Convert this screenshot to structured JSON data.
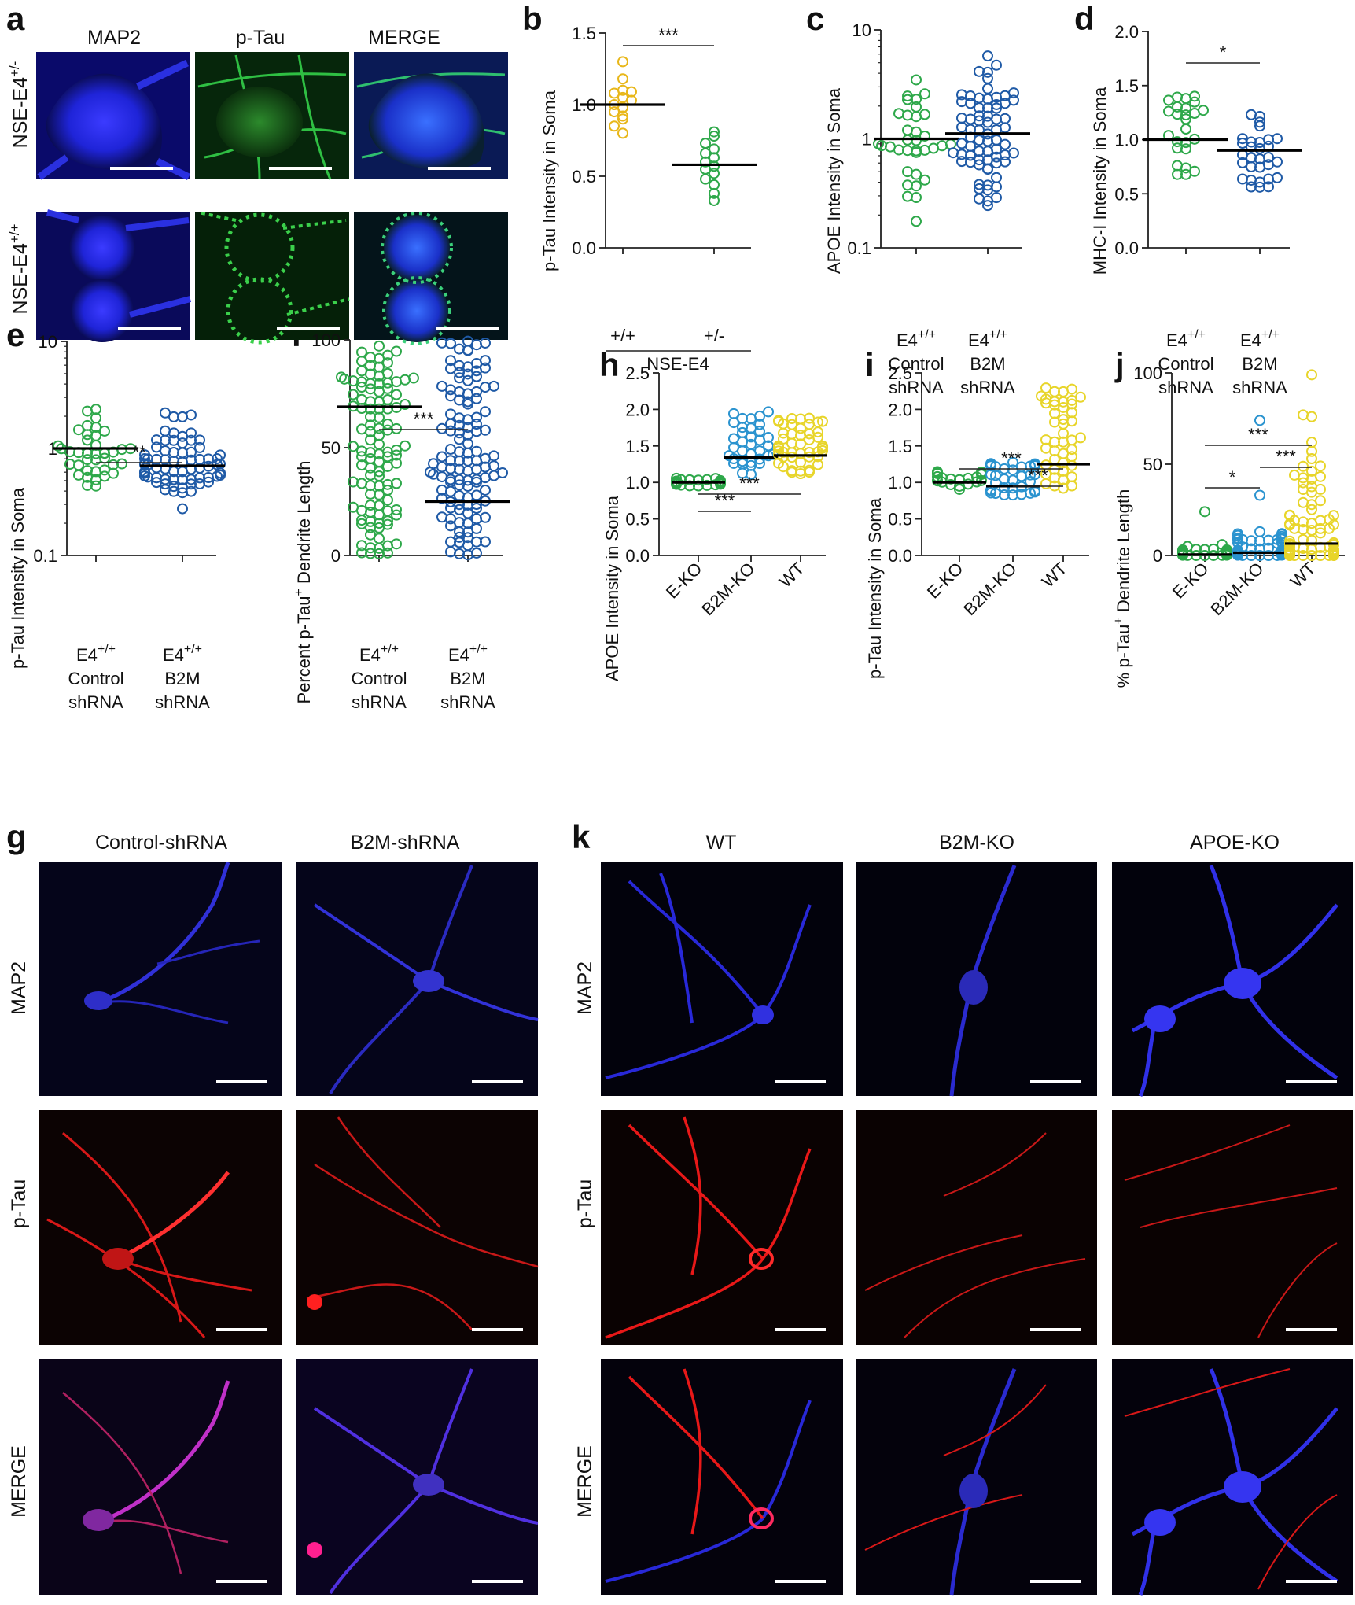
{
  "panel_letters": {
    "a": "a",
    "b": "b",
    "c": "c",
    "d": "d",
    "e": "e",
    "f": "f",
    "g": "g",
    "h": "h",
    "i": "i",
    "j": "j",
    "k": "k"
  },
  "panel_a": {
    "columns": [
      "MAP2",
      "p-Tau",
      "MERGE"
    ],
    "rows": [
      {
        "base": "NSE-E4",
        "sup": "+/-"
      },
      {
        "base": "NSE-E4",
        "sup": "+/+"
      }
    ],
    "colors": {
      "map2": "#1a22e6",
      "ptau": "#1fa02e"
    }
  },
  "panel_g": {
    "columns": [
      "Control-shRNA",
      "B2M-shRNA"
    ],
    "rows": [
      "MAP2",
      "p-Tau",
      "MERGE"
    ],
    "colors": {
      "map2": "#2a2adf",
      "ptau": "#e01515",
      "merge": "#b020c0"
    }
  },
  "panel_k": {
    "columns": [
      "WT",
      "B2M-KO",
      "APOE-KO"
    ],
    "rows": [
      "MAP2",
      "p-Tau",
      "MERGE"
    ]
  },
  "group_labels": {
    "plusplus": "+/+",
    "plusminus": "+/-",
    "nse_e4": "NSE-E4",
    "e4": "E4",
    "sup": "+/+",
    "control": "Control",
    "b2m": "B2M",
    "shrna": "shRNA",
    "pct_ptau_base": "Percent p-Tau",
    "pct_ptau_tail": " Dendrite Length",
    "pct2_base": "% p-Tau",
    "pct2_tail": " Dendrite Length",
    "plus": "+"
  },
  "chart_data": [
    {
      "panel": "b",
      "type": "scatter",
      "ylabel": "p-Tau Intensity in Soma",
      "ylim": [
        0.0,
        1.5
      ],
      "yticks": [
        "0.0",
        "0.5",
        "1.0",
        "1.5"
      ],
      "categories": [
        "+/+",
        "+/-"
      ],
      "group_label": "NSE-E4",
      "series": [
        {
          "color": "#e8b71a",
          "mean": 1.0,
          "values": [
            1.3,
            1.18,
            1.1,
            1.09,
            1.08,
            1.05,
            1.03,
            1.0,
            0.98,
            0.95,
            0.92,
            0.9,
            0.85,
            0.8
          ]
        },
        {
          "color": "#2ea84a",
          "mean": 0.58,
          "values": [
            0.81,
            0.78,
            0.73,
            0.69,
            0.66,
            0.63,
            0.6,
            0.57,
            0.55,
            0.52,
            0.48,
            0.44,
            0.38,
            0.33
          ]
        }
      ],
      "significance": [
        {
          "from": 0,
          "to": 1,
          "label": "***"
        }
      ]
    },
    {
      "panel": "c",
      "type": "scatter",
      "scale": "log",
      "ylabel": "APOE Intensity in Soma",
      "ylim": [
        0.1,
        10
      ],
      "yticks": [
        "0.1",
        "1",
        "10"
      ],
      "series": [
        {
          "color": "#2ea84a",
          "mean": 1.0,
          "n": 34,
          "spread": 0.9
        },
        {
          "color": "#1f5aa6",
          "mean": 1.12,
          "n": 70,
          "spread": 1.0
        }
      ]
    },
    {
      "panel": "d",
      "type": "scatter",
      "ylabel": "MHC-I Intensity in Soma",
      "ylim": [
        0.0,
        2.0
      ],
      "yticks": [
        "0.0",
        "0.5",
        "1.0",
        "1.5",
        "2.0"
      ],
      "series": [
        {
          "color": "#2ea84a",
          "mean": 1.0,
          "n": 25,
          "lo": 0.65,
          "hi": 1.45
        },
        {
          "color": "#1f5aa6",
          "mean": 0.9,
          "n": 30,
          "lo": 0.52,
          "hi": 1.25
        }
      ],
      "significance": [
        {
          "from": 0,
          "to": 1,
          "label": "*"
        }
      ]
    },
    {
      "panel": "e",
      "type": "scatter",
      "scale": "log",
      "ylabel": "p-Tau Intensity in Soma",
      "ylim": [
        0.1,
        10
      ],
      "yticks": [
        "0.1",
        "1",
        "10"
      ],
      "series": [
        {
          "color": "#2ea84a",
          "mean": 1.0,
          "n": 38,
          "spread": 0.6
        },
        {
          "color": "#1f5aa6",
          "mean": 0.69,
          "n": 70,
          "spread": 0.65
        }
      ],
      "significance": [
        {
          "from": 0,
          "to": 1,
          "label": "**"
        }
      ]
    },
    {
      "panel": "f",
      "type": "scatter",
      "ylim": [
        0,
        100
      ],
      "yticks": [
        "0",
        "50",
        "100"
      ],
      "series": [
        {
          "color": "#2ea84a",
          "mean": 69,
          "n": 110,
          "lo": 0,
          "hi": 100
        },
        {
          "color": "#1f5aa6",
          "mean": 25,
          "n": 120,
          "lo": 0,
          "hi": 100
        }
      ],
      "significance": [
        {
          "from": 0,
          "to": 1,
          "label": "***"
        }
      ]
    },
    {
      "panel": "h",
      "type": "scatter",
      "ylabel": "APOE Intensity in Soma",
      "ylim": [
        0.0,
        2.5
      ],
      "yticks": [
        "0.0",
        "0.5",
        "1.0",
        "1.5",
        "2.0",
        "2.5"
      ],
      "categories": [
        "E-KO",
        "B2M-KO",
        "WT"
      ],
      "series": [
        {
          "color": "#2ea84a",
          "mean": 1.0,
          "n": 25,
          "lo": 0.95,
          "hi": 1.06
        },
        {
          "color": "#2a93cf",
          "mean": 1.34,
          "n": 35,
          "lo": 1.08,
          "hi": 2.0
        },
        {
          "color": "#e8d52a",
          "mean": 1.37,
          "n": 50,
          "lo": 1.12,
          "hi": 1.88
        }
      ],
      "significance": [
        {
          "from": 0,
          "to": 1,
          "label": "***"
        },
        {
          "from": 0,
          "to": 2,
          "label": "***"
        }
      ]
    },
    {
      "panel": "i",
      "type": "scatter",
      "ylabel": "p-Tau Intensity in Soma",
      "ylim": [
        0.0,
        2.5
      ],
      "yticks": [
        "0.0",
        "0.5",
        "1.0",
        "1.5",
        "2.0",
        "2.5"
      ],
      "categories": [
        "E-KO",
        "B2M-KO",
        "WT"
      ],
      "series": [
        {
          "color": "#2ea84a",
          "mean": 1.0,
          "n": 25,
          "lo": 0.9,
          "hi": 1.15
        },
        {
          "color": "#2a93cf",
          "mean": 0.95,
          "n": 35,
          "lo": 0.82,
          "hi": 1.28
        },
        {
          "color": "#e8d52a",
          "mean": 1.25,
          "n": 45,
          "lo": 0.92,
          "hi": 2.32
        }
      ],
      "significance": [
        {
          "from": 0,
          "to": 2,
          "label": "***"
        },
        {
          "from": 1,
          "to": 2,
          "label": "***"
        }
      ]
    },
    {
      "panel": "j",
      "type": "scatter",
      "ylim": [
        0,
        100
      ],
      "yticks": [
        "0",
        "50",
        "100"
      ],
      "categories": [
        "E-KO",
        "B2M-KO",
        "WT"
      ],
      "series": [
        {
          "color": "#2ea84a",
          "mean": 0.5,
          "n": 35,
          "lo": 0,
          "hi": 5,
          "outliers": [
            24,
            6
          ]
        },
        {
          "color": "#2a93cf",
          "mean": 1.5,
          "n": 50,
          "lo": 0,
          "hi": 14,
          "outliers": [
            74,
            33
          ]
        },
        {
          "color": "#e8d52a",
          "mean": 6.5,
          "n": 80,
          "lo": 0,
          "hi": 50,
          "outliers": [
            99,
            77,
            76,
            62,
            57,
            53,
            49,
            44
          ]
        }
      ],
      "significance": [
        {
          "from": 0,
          "to": 1,
          "label": "*"
        },
        {
          "from": 1,
          "to": 2,
          "label": "***"
        },
        {
          "from": 0,
          "to": 2,
          "label": "***"
        }
      ]
    }
  ]
}
